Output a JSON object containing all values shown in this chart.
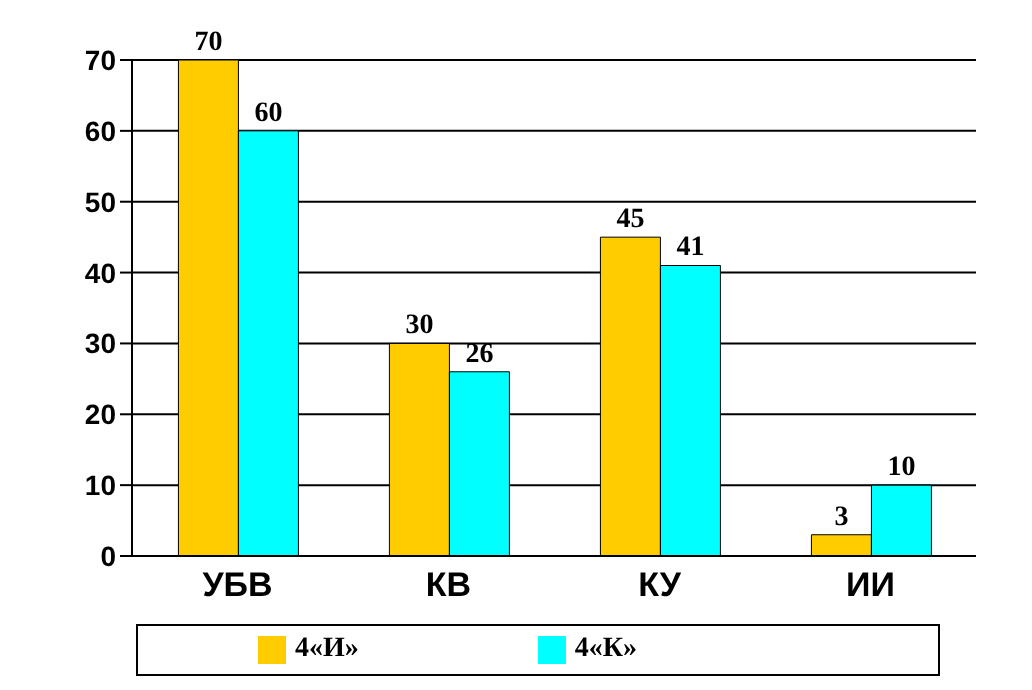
{
  "chart_data": {
    "type": "bar",
    "categories": [
      "УБВ",
      "КВ",
      "КУ",
      "ИИ"
    ],
    "series": [
      {
        "name": "4«И»",
        "color": "#ffcc00",
        "values": [
          70,
          30,
          45,
          3
        ]
      },
      {
        "name": "4«К»",
        "color": "#00ffff",
        "values": [
          60,
          26,
          41,
          10
        ]
      }
    ],
    "ylim": [
      0,
      70
    ],
    "yticks": [
      0,
      10,
      20,
      30,
      40,
      50,
      60,
      70
    ],
    "grid": "y",
    "legend": "bottom",
    "data_labels": true
  }
}
